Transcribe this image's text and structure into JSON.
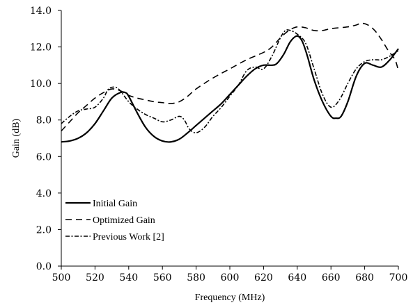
{
  "chart_data": {
    "type": "line",
    "xlabel": "Frequency (MHz)",
    "ylabel": "Gain (dB)",
    "xlim": [
      500,
      700
    ],
    "ylim": [
      0,
      14
    ],
    "x_ticks": [
      500,
      520,
      540,
      560,
      580,
      600,
      620,
      640,
      660,
      680,
      700
    ],
    "y_ticks": [
      "0.0",
      "2.0",
      "4.0",
      "6.0",
      "8.0",
      "10.0",
      "12.0",
      "14.0"
    ],
    "grid": false,
    "legend_position": "bottom-left",
    "series": [
      {
        "name": "Initial Gain",
        "style": "solid",
        "x": [
          500,
          505,
          510,
          515,
          520,
          525,
          530,
          535,
          538,
          540,
          545,
          550,
          555,
          560,
          565,
          570,
          575,
          580,
          585,
          590,
          595,
          600,
          605,
          610,
          615,
          620,
          625,
          628,
          632,
          636,
          640,
          643,
          646,
          650,
          655,
          660,
          663,
          666,
          670,
          675,
          680,
          685,
          690,
          695,
          700
        ],
        "y": [
          6.8,
          6.85,
          7.0,
          7.3,
          7.8,
          8.5,
          9.2,
          9.5,
          9.5,
          9.3,
          8.4,
          7.6,
          7.1,
          6.85,
          6.8,
          6.95,
          7.3,
          7.7,
          8.1,
          8.5,
          8.9,
          9.4,
          9.9,
          10.4,
          10.8,
          11.0,
          11.0,
          11.1,
          11.6,
          12.3,
          12.6,
          12.3,
          11.5,
          10.2,
          9.0,
          8.2,
          8.1,
          8.2,
          9.0,
          10.4,
          11.1,
          11.0,
          10.9,
          11.3,
          11.9
        ]
      },
      {
        "name": "Optimized Gain",
        "style": "dashed",
        "x": [
          500,
          505,
          510,
          515,
          520,
          525,
          530,
          535,
          540,
          545,
          550,
          555,
          560,
          565,
          570,
          575,
          580,
          590,
          600,
          610,
          620,
          625,
          630,
          635,
          640,
          645,
          650,
          655,
          660,
          670,
          675,
          678,
          682,
          686,
          690,
          694,
          698,
          700
        ],
        "y": [
          7.4,
          7.9,
          8.4,
          8.8,
          9.2,
          9.5,
          9.7,
          9.6,
          9.35,
          9.2,
          9.1,
          9.0,
          8.95,
          8.9,
          9.0,
          9.3,
          9.7,
          10.3,
          10.8,
          11.3,
          11.7,
          12.0,
          12.5,
          12.9,
          13.1,
          13.05,
          12.9,
          12.9,
          13.0,
          13.1,
          13.2,
          13.3,
          13.2,
          12.9,
          12.4,
          11.8,
          11.3,
          10.7
        ]
      },
      {
        "name": "Previous Work [2]",
        "style": "dash-dot",
        "x": [
          500,
          505,
          510,
          515,
          520,
          525,
          528,
          532,
          535,
          540,
          545,
          550,
          555,
          560,
          565,
          570,
          573,
          576,
          580,
          585,
          590,
          595,
          600,
          605,
          610,
          615,
          620,
          625,
          630,
          633,
          636,
          640,
          645,
          650,
          655,
          660,
          665,
          670,
          675,
          680,
          685,
          690,
          695,
          700
        ],
        "y": [
          7.8,
          8.2,
          8.5,
          8.6,
          8.7,
          9.2,
          9.7,
          9.8,
          9.6,
          9.0,
          8.6,
          8.3,
          8.1,
          7.9,
          8.0,
          8.2,
          8.0,
          7.5,
          7.3,
          7.6,
          8.2,
          8.7,
          9.3,
          9.9,
          10.7,
          10.9,
          10.8,
          11.5,
          12.5,
          12.9,
          12.9,
          12.7,
          12.2,
          10.8,
          9.4,
          8.7,
          9.1,
          10.0,
          10.8,
          11.2,
          11.3,
          11.3,
          11.5,
          11.8
        ]
      }
    ]
  }
}
